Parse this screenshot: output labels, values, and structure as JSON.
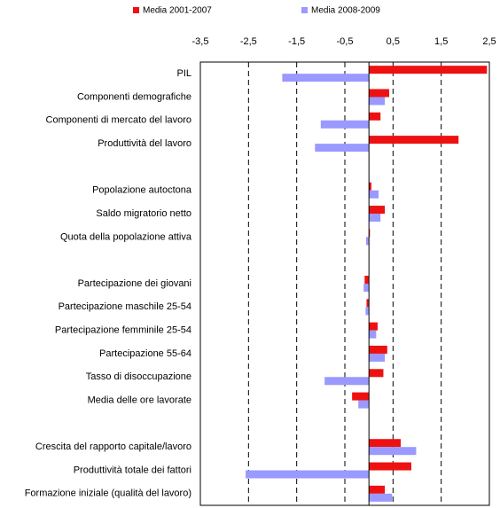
{
  "chart_data": {
    "type": "hbar",
    "categories": [
      "PIL",
      "Componenti demografiche",
      "Componenti di mercato del lavoro",
      "Produttività del lavoro",
      null,
      "Popolazione autoctona",
      "Saldo migratorio netto",
      "Quota della popolazione attiva",
      null,
      "Partecipazione dei giovani",
      "Partecipazione maschile 25-54",
      "Partecipazione femminile 25-54",
      "Partecipazione 55-64",
      "Tasso di disoccupazione",
      "Media delle ore lavorate",
      null,
      "Crescita del rapporto capitale/lavoro",
      "Produttività totale dei fattori",
      "Formazione iniziale (qualità del lavoro)"
    ],
    "series": [
      {
        "name": "Media 2001-2007",
        "color": "#ee1111",
        "values": [
          2.45,
          0.42,
          0.24,
          1.86,
          null,
          0.05,
          0.33,
          0.02,
          null,
          -0.09,
          -0.05,
          0.18,
          0.38,
          0.3,
          -0.35,
          null,
          0.66,
          0.88,
          0.33
        ]
      },
      {
        "name": "Media 2008-2009",
        "color": "#9999ff",
        "values": [
          -1.8,
          0.33,
          -1.0,
          -1.12,
          null,
          0.2,
          0.24,
          -0.06,
          null,
          -0.11,
          -0.07,
          0.15,
          0.33,
          -0.92,
          -0.22,
          null,
          0.98,
          -2.56,
          0.48
        ]
      }
    ],
    "xlim": [
      -3.5,
      2.5
    ],
    "xticks": [
      {
        "value": -3.5,
        "label": "-3,5"
      },
      {
        "value": -2.5,
        "label": "-2,5"
      },
      {
        "value": -1.5,
        "label": "-1,5"
      },
      {
        "value": -0.5,
        "label": "-0,5"
      },
      {
        "value": 0.5,
        "label": "0,5"
      },
      {
        "value": 1.5,
        "label": "1,5"
      },
      {
        "value": 2.5,
        "label": "2,5"
      }
    ],
    "grid": true
  }
}
